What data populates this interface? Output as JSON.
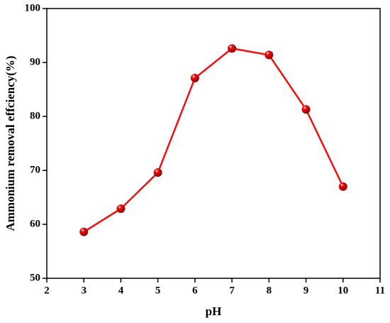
{
  "chart_data": {
    "type": "line",
    "x_label": "pH",
    "y_label": "Ammonium removal effciency(%)",
    "x": [
      3,
      4,
      5,
      6,
      7,
      8,
      9,
      10
    ],
    "values": [
      58.6,
      62.9,
      69.6,
      87.1,
      92.6,
      91.4,
      81.3,
      67.0
    ],
    "color": "#ee1111",
    "xlim": [
      2,
      11
    ],
    "xticks": [
      2,
      3,
      4,
      5,
      6,
      7,
      8,
      9,
      10,
      11
    ],
    "ylim": [
      50,
      100
    ],
    "yticks": [
      50,
      60,
      70,
      80,
      90,
      100
    ],
    "grid": false
  }
}
